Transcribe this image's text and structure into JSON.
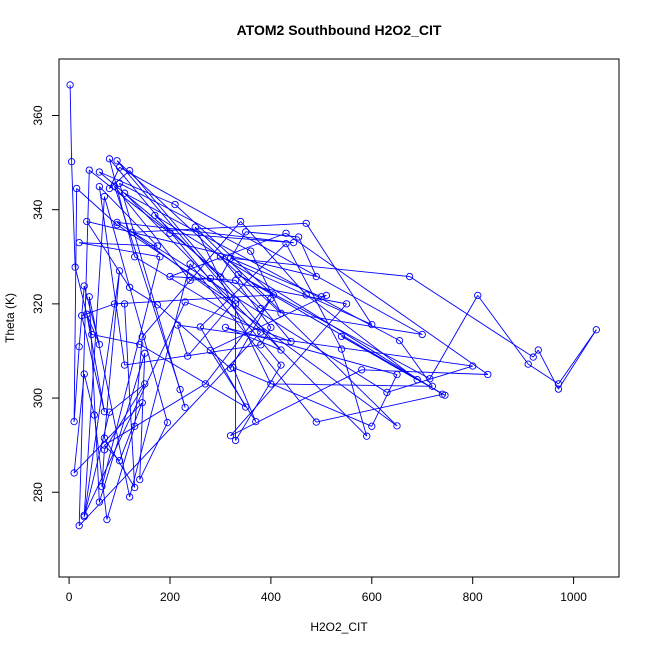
{
  "chart_data": {
    "type": "line",
    "title": "ATOM2 Southbound H2O2_CIT",
    "xlabel": "H2O2_CIT",
    "ylabel": "Theta (K)",
    "xlim": [
      -20,
      1090
    ],
    "ylim": [
      262,
      372
    ],
    "xticks": [
      0,
      200,
      400,
      600,
      800,
      1000
    ],
    "yticks": [
      280,
      300,
      320,
      340,
      360
    ],
    "grid": false,
    "color": "#0000ff",
    "markers": "open-circle",
    "series": [
      {
        "points": [
          [
            2,
            366.5
          ],
          [
            5,
            350.2
          ],
          [
            12,
            327.8
          ],
          [
            45,
            313.5
          ],
          [
            140,
            311.4
          ],
          [
            350,
            298.1
          ],
          [
            260,
            315.1
          ],
          [
            430,
            332.8
          ],
          [
            540,
            310.4
          ],
          [
            590,
            291.9
          ],
          [
            110,
            343.5
          ],
          [
            655,
            312.2
          ],
          [
            720,
            302.5
          ],
          [
            400,
            303.0
          ],
          [
            250,
            336.3
          ],
          [
            650,
            294.1
          ],
          [
            125,
            335.2
          ],
          [
            470,
            337.1
          ],
          [
            600,
            315.6
          ],
          [
            300,
            330.0
          ],
          [
            440,
            312.0
          ],
          [
            230,
            320.4
          ],
          [
            30,
            275.1
          ],
          [
            70,
            342.8
          ],
          [
            195,
            294.8
          ],
          [
            140,
            282.7
          ],
          [
            150,
            309.5
          ],
          [
            60,
            277.9
          ],
          [
            40,
            321.5
          ],
          [
            120,
            279.0
          ],
          [
            240,
            328.5
          ],
          [
            490,
            294.9
          ],
          [
            740,
            300.8
          ],
          [
            170,
            338.8
          ],
          [
            300,
            325.7
          ],
          [
            350,
            335.3
          ],
          [
            455,
            334.2
          ],
          [
            490,
            325.8
          ],
          [
            35,
            337.5
          ],
          [
            120,
            323.5
          ],
          [
            175,
            319.8
          ],
          [
            320,
            306.3
          ],
          [
            400,
            321.1
          ],
          [
            270,
            303.0
          ],
          [
            70,
            290.0
          ],
          [
            100,
            286.7
          ],
          [
            145,
            299.0
          ],
          [
            10,
            284.1
          ],
          [
            30,
            305.1
          ],
          [
            50,
            296.4
          ],
          [
            75,
            274.2
          ],
          [
            130,
            294.0
          ],
          [
            145,
            313.0
          ],
          [
            340,
            337.5
          ],
          [
            470,
            321.9
          ],
          [
            690,
            303.9
          ],
          [
            540,
            313.1
          ],
          [
            745,
            300.6
          ],
          [
            335,
            326.2
          ],
          [
            715,
            304.1
          ],
          [
            810,
            321.8
          ],
          [
            910,
            307.2
          ],
          [
            970,
            303.0
          ],
          [
            1045,
            314.5
          ],
          [
            970,
            301.9
          ],
          [
            930,
            310.2
          ],
          [
            920,
            308.7
          ],
          [
            675,
            325.8
          ],
          [
            320,
            329.7
          ],
          [
            500,
            321.5
          ],
          [
            510,
            321.8
          ],
          [
            280,
            310.1
          ],
          [
            370,
            295.0
          ],
          [
            325,
            306.5
          ],
          [
            600,
            294.0
          ],
          [
            650,
            305.0
          ],
          [
            310,
            315.0
          ],
          [
            420,
            310.2
          ],
          [
            120,
            348.3
          ],
          [
            80,
            344.5
          ],
          [
            100,
            349.0
          ],
          [
            700,
            313.5
          ],
          [
            380,
            319.0
          ],
          [
            60,
            348.0
          ],
          [
            210,
            341.1
          ],
          [
            405,
            321.9
          ],
          [
            90,
            320.0
          ],
          [
            25,
            317.5
          ],
          [
            70,
            297.1
          ],
          [
            35,
            317.8
          ],
          [
            60,
            311.4
          ],
          [
            30,
            323.8
          ],
          [
            20,
            310.9
          ],
          [
            10,
            295.0
          ],
          [
            15,
            344.5
          ],
          [
            95,
            336.8
          ],
          [
            330,
            320.0
          ],
          [
            330,
            291.0
          ],
          [
            420,
            307.0
          ],
          [
            80,
            350.8
          ],
          [
            130,
            330.0
          ],
          [
            380,
            314.0
          ],
          [
            20,
            272.9
          ],
          [
            40,
            348.4
          ],
          [
            200,
            335.0
          ],
          [
            445,
            333.0
          ],
          [
            95,
            337.3
          ],
          [
            630,
            301.2
          ],
          [
            800,
            306.8
          ],
          [
            215,
            315.5
          ],
          [
            235,
            308.9
          ],
          [
            330,
            320.8
          ],
          [
            95,
            350.4
          ],
          [
            420,
            318.0
          ],
          [
            360,
            331.2
          ],
          [
            100,
            345.6
          ],
          [
            230,
            298.0
          ],
          [
            220,
            301.8
          ],
          [
            90,
            345.0
          ],
          [
            240,
            325.0
          ],
          [
            280,
            325.4
          ],
          [
            550,
            320.0
          ],
          [
            320,
            292.0
          ],
          [
            580,
            306.0
          ],
          [
            830,
            305.0
          ],
          [
            430,
            335.0
          ],
          [
            200,
            325.8
          ],
          [
            330,
            325.0
          ],
          [
            400,
            315.0
          ],
          [
            380,
            311.3
          ],
          [
            110,
            307.0
          ],
          [
            60,
            344.9
          ],
          [
            175,
            332.3
          ],
          [
            20,
            333.0
          ],
          [
            180,
            330.0
          ],
          [
            65,
            281.2
          ],
          [
            70,
            289.0
          ],
          [
            150,
            303.0
          ],
          [
            80,
            297.0
          ],
          [
            30,
            274.8
          ],
          [
            100,
            327.0
          ],
          [
            70,
            291.5
          ],
          [
            130,
            281.0
          ],
          [
            110,
            320.0
          ]
        ]
      }
    ]
  }
}
